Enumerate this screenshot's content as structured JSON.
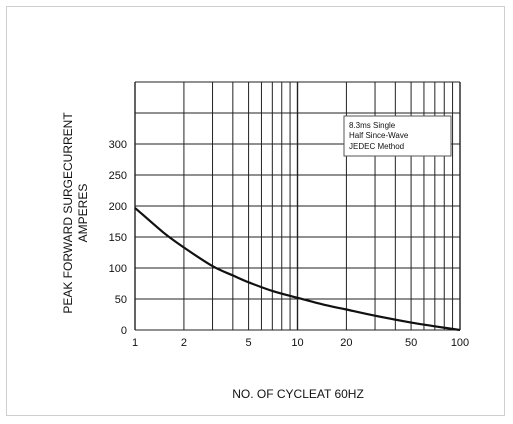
{
  "chart_data": {
    "type": "line",
    "xscale": "log",
    "xlim": [
      1,
      100
    ],
    "ylim": [
      0,
      400
    ],
    "x_ticks": [
      1,
      2,
      5,
      10,
      20,
      50,
      100
    ],
    "y_ticks": [
      0,
      50,
      100,
      150,
      200,
      250,
      300
    ],
    "grid": true,
    "ylabel_lines": [
      "PEAK FORWARD SURGECURRENT",
      "AMPERES"
    ],
    "xlabel": "NO. OF CYCLEAT 60HZ",
    "annotation_lines": [
      "8.3ms Single",
      "Half Since-Wave",
      "JEDEC Method"
    ],
    "series": [
      {
        "x": [
          1,
          1.5,
          2,
          3,
          4,
          5,
          7,
          10,
          15,
          20,
          30,
          50,
          70,
          100
        ],
        "y": [
          197,
          157,
          133,
          103,
          88,
          77,
          63,
          52,
          40,
          33,
          23,
          12,
          6,
          0
        ]
      }
    ]
  }
}
